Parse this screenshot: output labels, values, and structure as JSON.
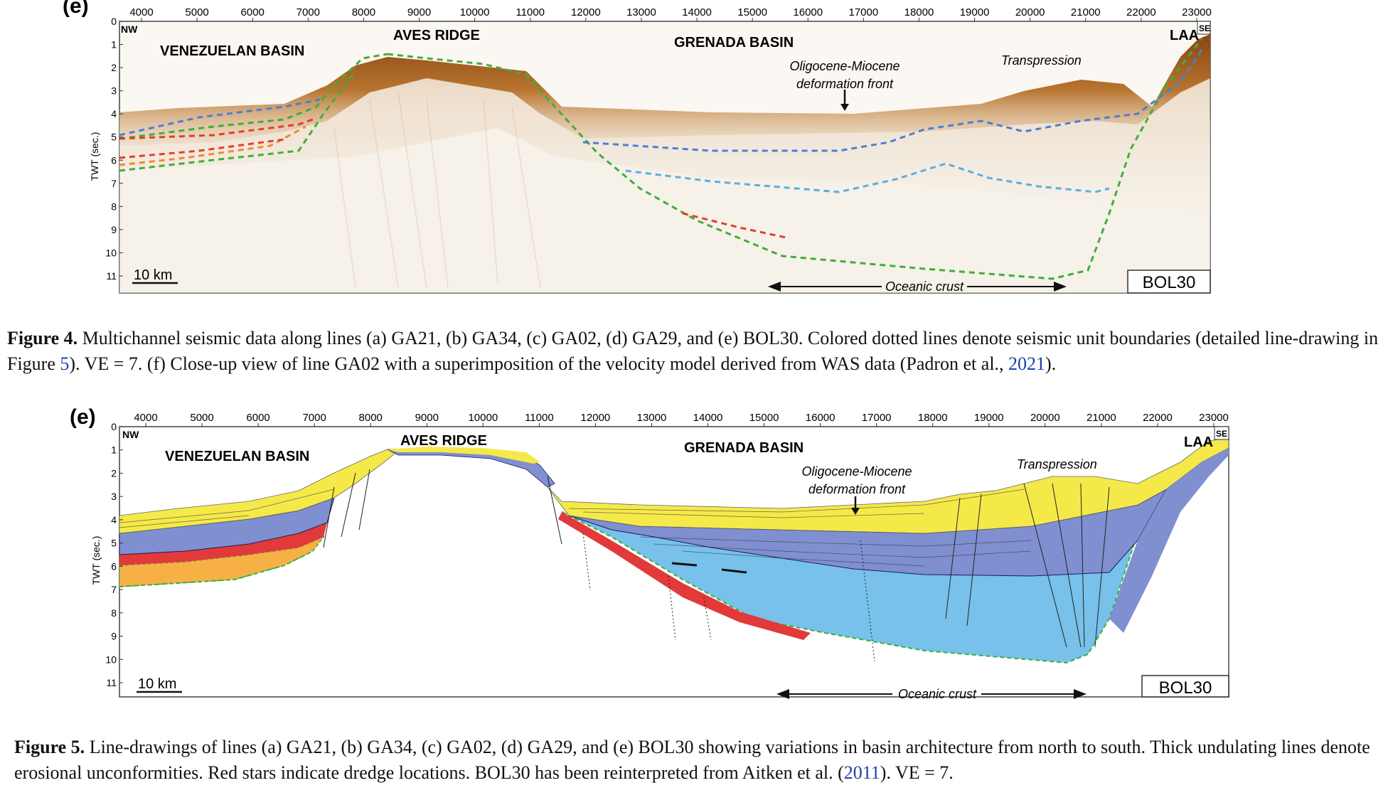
{
  "figure4": {
    "panel_letter": "(e)",
    "x_ticks": [
      "4000",
      "5000",
      "6000",
      "7000",
      "8000",
      "9000",
      "10000",
      "11000",
      "12000",
      "13000",
      "14000",
      "15000",
      "16000",
      "17000",
      "18000",
      "19000",
      "20000",
      "21000",
      "22000",
      "23000"
    ],
    "y_ticks": [
      "0",
      "1",
      "2",
      "3",
      "4",
      "5",
      "6",
      "7",
      "8",
      "9",
      "10",
      "11"
    ],
    "y_axis_label": "TWT (sec.)",
    "corner_left": "NW",
    "corner_right": "SE",
    "label_venezuelan": "VENEZUELAN BASIN",
    "label_aves": "AVES RIDGE",
    "label_grenada": "GRENADA BASIN",
    "label_front_1": "Oligocene-Miocene",
    "label_front_2": "deformation front",
    "label_transpression": "Transpression",
    "label_laa": "LAA",
    "scale_bar": "10 km",
    "oceanic_crust": "Oceanic crust",
    "line_name": "BOL30"
  },
  "caption4": {
    "figure_label": "Figure 4.",
    "text_a": " Multichannel seismic data along lines (a) GA21, (b) GA34, (c) GA02, (d) GA29, and (e) BOL30. Colored dotted lines denote seismic unit boundaries (detailed line-drawing in Figure ",
    "link_fig": "5",
    "text_b": "). VE = 7. (f) Close-up view of line GA02 with a superimposition of the velocity model derived from WAS data (Padron et al., ",
    "link_year": "2021",
    "text_c": ")."
  },
  "figure5": {
    "panel_letter": "(e)",
    "x_ticks": [
      "4000",
      "5000",
      "6000",
      "7000",
      "8000",
      "9000",
      "10000",
      "11000",
      "12000",
      "13000",
      "14000",
      "15000",
      "16000",
      "17000",
      "18000",
      "19000",
      "20000",
      "21000",
      "22000",
      "23000"
    ],
    "y_ticks": [
      "0",
      "1",
      "2",
      "3",
      "4",
      "5",
      "6",
      "7",
      "8",
      "9",
      "10",
      "11"
    ],
    "y_axis_label": "TWT (sec.)",
    "corner_left": "NW",
    "corner_right": "SE",
    "label_venezuelan": "VENEZUELAN BASIN",
    "label_aves": "AVES RIDGE",
    "label_grenada": "GRENADA BASIN",
    "label_front_1": "Oligocene-Miocene",
    "label_front_2": "deformation front",
    "label_transpression": "Transpression",
    "label_laa": "LAA",
    "scale_bar": "10 km",
    "oceanic_crust": "Oceanic crust",
    "line_name": "BOL30"
  },
  "caption5": {
    "figure_label": "Figure 5.",
    "text_a": " Line-drawings of lines (a) GA21, (b) GA34, (c) GA02, (d) GA29, and (e) BOL30 showing variations in basin architecture from north to south. Thick undulating lines denote erosional unconformities. Red stars indicate dredge locations. BOL30 has been reinterpreted from Aitken et al. (",
    "link_year": "2011",
    "text_b": "). VE = 7."
  },
  "colors": {
    "seismic_brown": "#a0561e",
    "blue_dash": "#4a7fd6",
    "light_blue_dash": "#5aaee0",
    "green_dash": "#3fae3a",
    "red_dash": "#e0402a",
    "orange_dash": "#f08a2a",
    "unit_yellow": "#f5e94a",
    "unit_dark_blue": "#7f8fd0",
    "unit_light_blue": "#77c1ea",
    "unit_red": "#e23a3a",
    "unit_orange": "#f7b045",
    "link_blue": "#1f3fae"
  }
}
